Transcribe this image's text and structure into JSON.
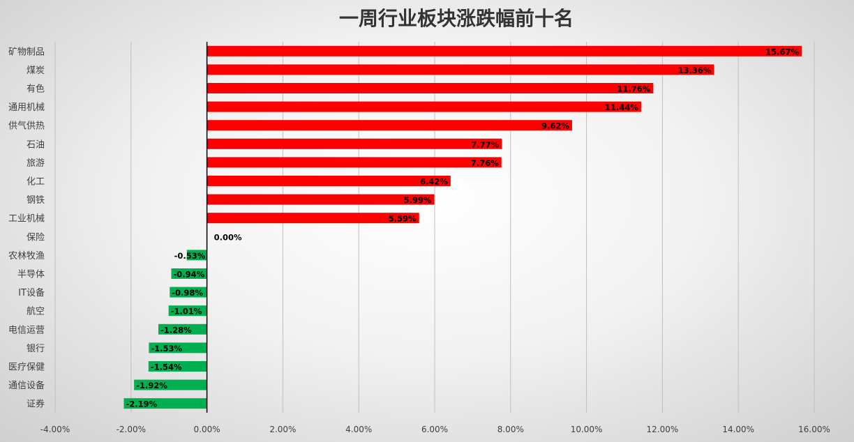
{
  "chart_data": {
    "type": "bar",
    "orientation": "horizontal",
    "title": "一周行业板块涨跌幅前十名",
    "categories": [
      "矿物制品",
      "煤炭",
      "有色",
      "通用机械",
      "供气供热",
      "石油",
      "旅游",
      "化工",
      "钢铁",
      "工业机械",
      "保险",
      "农林牧渔",
      "半导体",
      "IT设备",
      "航空",
      "电信运营",
      "银行",
      "医疗保健",
      "通信设备",
      "证券"
    ],
    "values": [
      15.67,
      13.36,
      11.76,
      11.44,
      9.62,
      7.77,
      7.76,
      6.42,
      5.99,
      5.59,
      0.0,
      -0.53,
      -0.94,
      -0.98,
      -1.01,
      -1.28,
      -1.53,
      -1.54,
      -1.92,
      -2.19
    ],
    "data_labels": [
      "15.67%",
      "13.36%",
      "11.76%",
      "11.44%",
      "9.62%",
      "7.77%",
      "7.76%",
      "6.42%",
      "5.99%",
      "5.59%",
      "0.00%",
      "-0.53%",
      "-0.94%",
      "-0.98%",
      "-1.01%",
      "-1.28%",
      "-1.53%",
      "-1.54%",
      "-1.92%",
      "-2.19%"
    ],
    "xlim": [
      -4,
      16
    ],
    "xticks": [
      -4,
      -2,
      0,
      2,
      4,
      6,
      8,
      10,
      12,
      14,
      16
    ],
    "xtick_labels": [
      "-4.00%",
      "-2.00%",
      "0.00%",
      "2.00%",
      "4.00%",
      "6.00%",
      "8.00%",
      "10.00%",
      "12.00%",
      "14.00%",
      "16.00%"
    ],
    "xlabel": "",
    "ylabel": "",
    "grid": true,
    "legend": "none",
    "colors": {
      "positive": "#ff0000",
      "negative": "#00b050",
      "grid": "#bfbfbf",
      "axis": "#000000"
    }
  }
}
